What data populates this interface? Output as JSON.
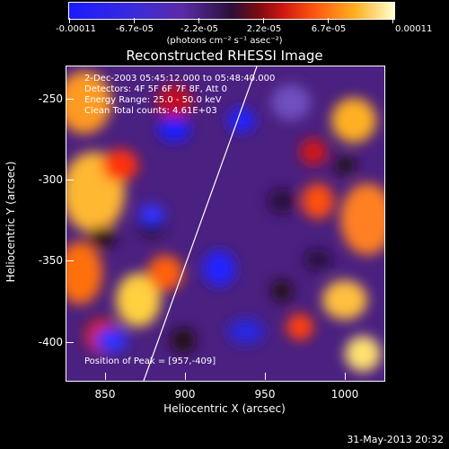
{
  "colorbar": {
    "ticks": [
      "-0.00011",
      "-6.7e-05",
      "-2.2e-05",
      "2.2e-05",
      "6.7e-05",
      "0.00011"
    ],
    "units": "(photons cm⁻² s⁻¹ asec⁻²)"
  },
  "plot": {
    "title": "Reconstructed RHESSI Image",
    "info": {
      "time": "2-Dec-2003 05:45:12.000 to 05:48:40.000",
      "detectors": "Detectors: 4F 5F 6F 7F 8F, Att 0",
      "energy": "Energy Range: 25.0 - 50.0 keV",
      "clean": "Clean    Total counts: 4.61E+03"
    },
    "peak": "Position of Peak = [957,-409]",
    "xlabel": "Heliocentric X (arcsec)",
    "ylabel": "Heliocentric Y (arcsec)",
    "xticks": [
      "850",
      "900",
      "950",
      "1000"
    ],
    "yticks": [
      "-250",
      "-300",
      "-350",
      "-400"
    ]
  },
  "footer": {
    "date": "31-May-2013 20:32"
  }
}
